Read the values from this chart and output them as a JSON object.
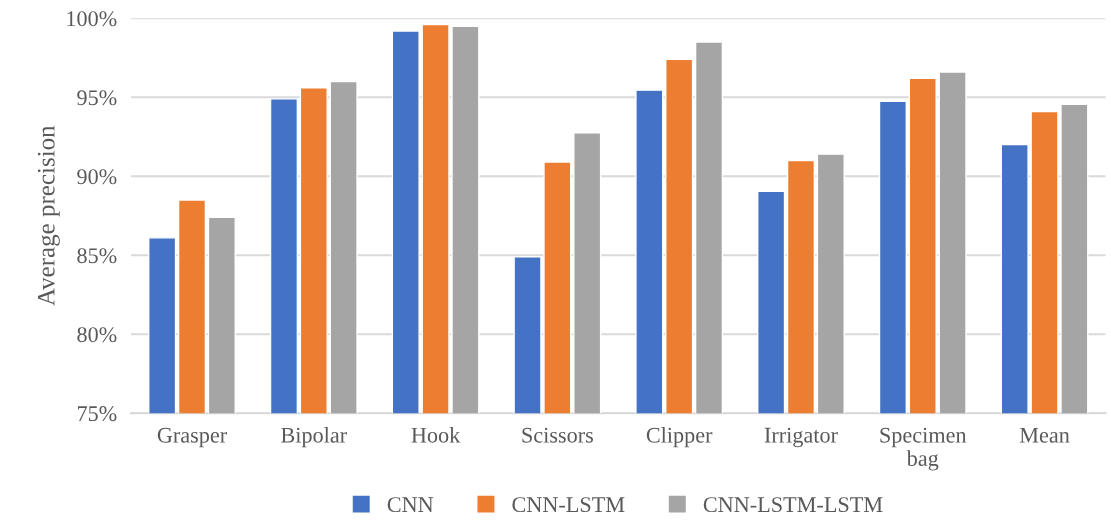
{
  "chart_data": {
    "type": "bar",
    "ylabel": "Average precision",
    "categories": [
      "Grasper",
      "Bipolar",
      "Hook",
      "Scissors",
      "Clipper",
      "Irrigator",
      "Specimen bag",
      "Mean"
    ],
    "series": [
      {
        "name": "CNN",
        "color": "#4472c4",
        "values": [
          86.1,
          94.9,
          99.2,
          84.9,
          95.45,
          89.05,
          94.75,
          92.0
        ]
      },
      {
        "name": "CNN-LSTM",
        "color": "#ed7d31",
        "values": [
          88.5,
          95.6,
          99.6,
          90.9,
          97.4,
          91.0,
          96.2,
          94.1
        ]
      },
      {
        "name": "CNN-LSTM-LSTM",
        "color": "#a5a5a5",
        "values": [
          87.4,
          96.0,
          99.5,
          92.75,
          98.5,
          91.4,
          96.6,
          94.55
        ]
      }
    ],
    "ylim": [
      75,
      100
    ],
    "yticks": [
      {
        "value": 75,
        "label": "75%"
      },
      {
        "value": 80,
        "label": "80%"
      },
      {
        "value": 85,
        "label": "85%"
      },
      {
        "value": 90,
        "label": "90%"
      },
      {
        "value": 95,
        "label": "95%"
      },
      {
        "value": 100,
        "label": "100%"
      }
    ],
    "grid": "y",
    "legend": "bottom"
  }
}
